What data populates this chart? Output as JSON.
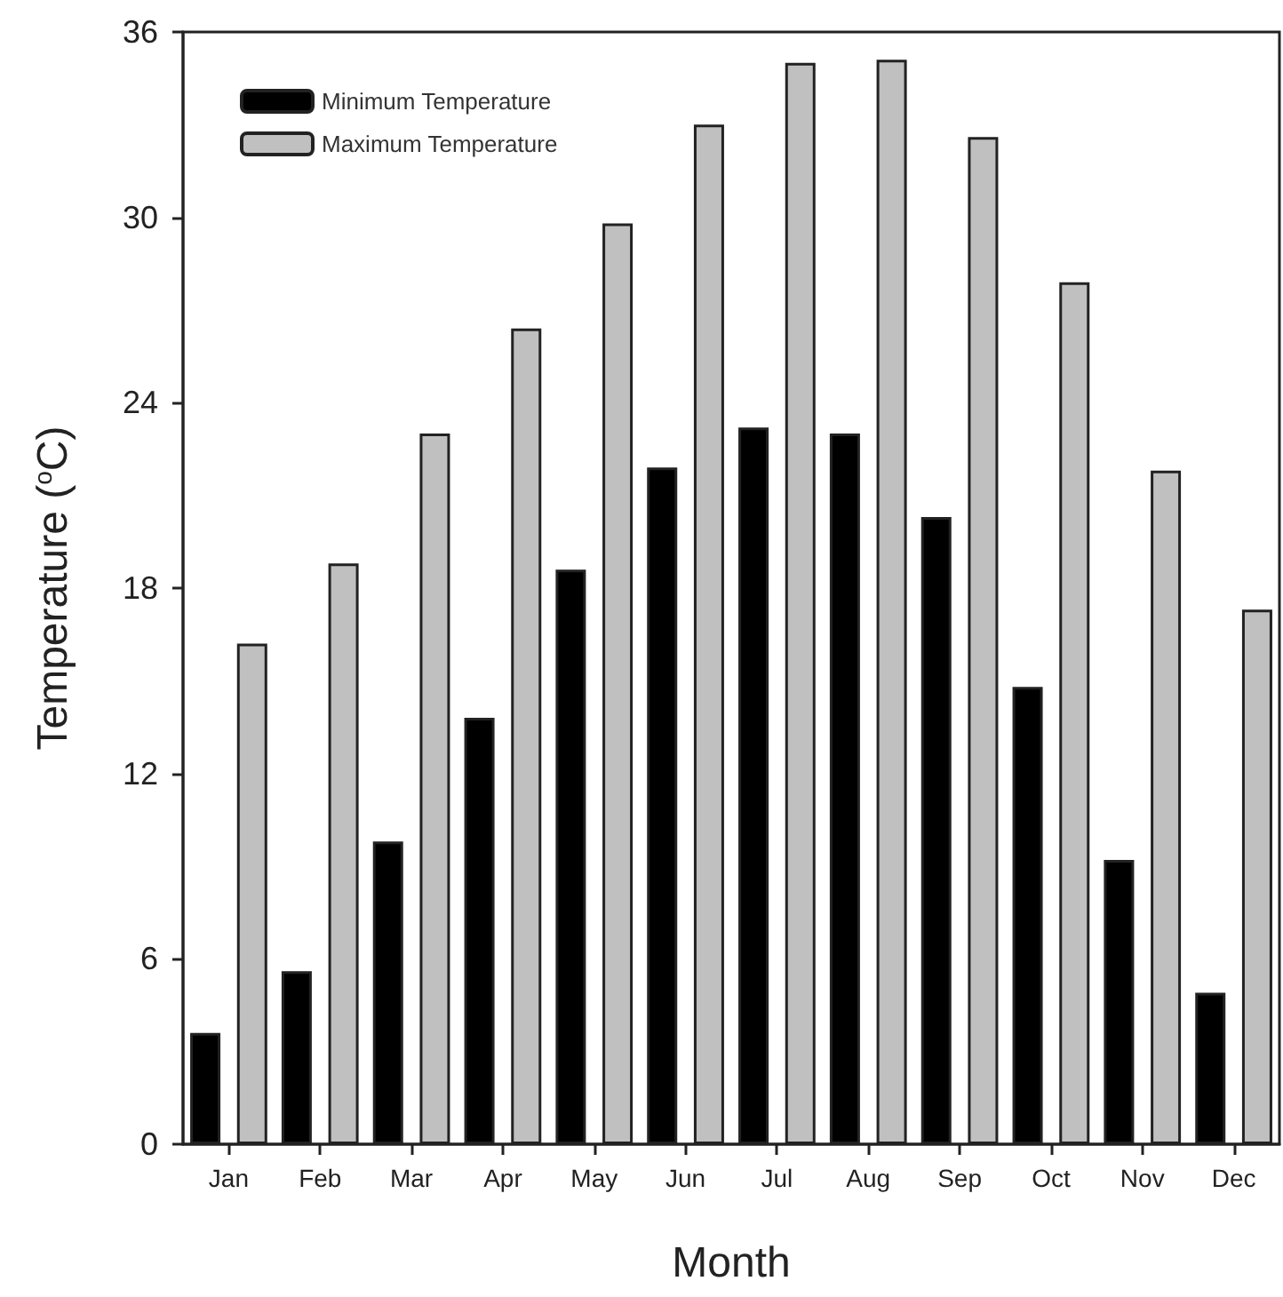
{
  "chart_data": {
    "type": "bar",
    "xlabel": "Month",
    "ylabel": "Temperature ($^{o}$C)",
    "categories": [
      "Jan",
      "Feb",
      "Mar",
      "Apr",
      "May",
      "Jun",
      "Jul",
      "Aug",
      "Sep",
      "Oct",
      "Nov",
      "Dec"
    ],
    "series": [
      {
        "name": "Minimum Temperature",
        "color": "#000000",
        "values": [
          3.6,
          5.6,
          9.8,
          13.8,
          18.6,
          21.9,
          23.2,
          23.0,
          20.3,
          14.8,
          9.2,
          4.9
        ]
      },
      {
        "name": "Maximum Temperature",
        "color": "#c0c0c0",
        "values": [
          16.2,
          18.8,
          23.0,
          26.4,
          29.8,
          33.0,
          35.0,
          35.1,
          32.6,
          27.9,
          21.8,
          17.3
        ]
      }
    ],
    "ylim": [
      0,
      36
    ],
    "yticks": [
      0,
      6,
      12,
      18,
      24,
      30,
      36
    ],
    "grid": false,
    "legend": "top left"
  }
}
